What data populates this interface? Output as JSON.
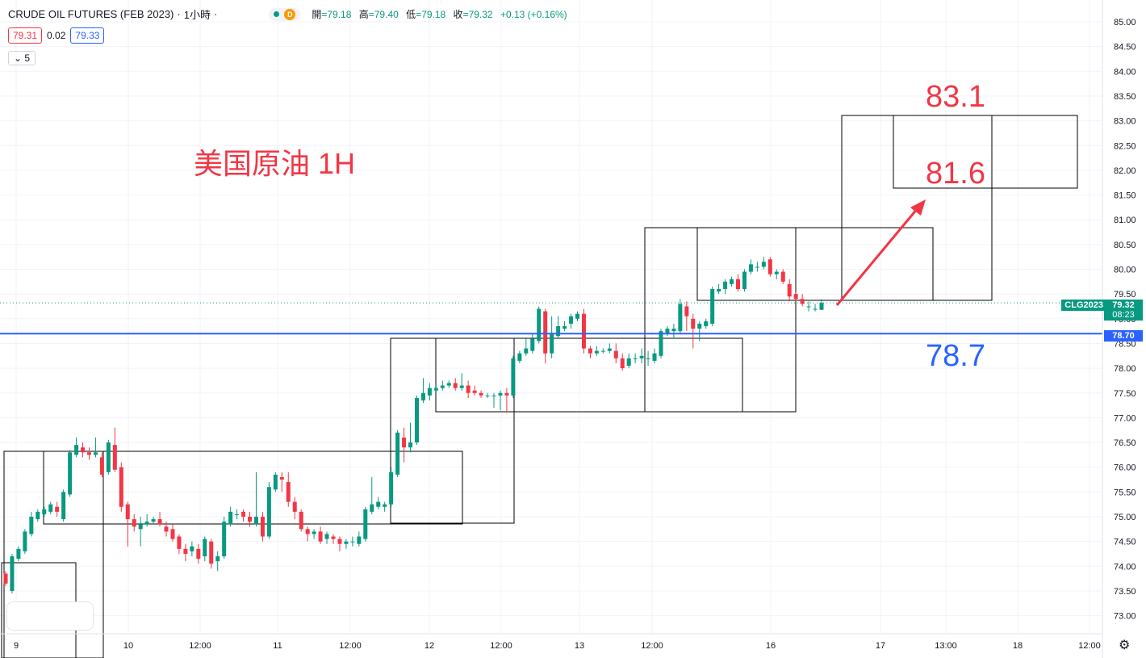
{
  "header": {
    "symbol": "CRUDE OIL FUTURES (FEB 2023)",
    "interval": "1小時",
    "status_letter": "D",
    "ohlc": [
      {
        "key": "開",
        "value": "=79.18"
      },
      {
        "key": "高",
        "value": "=79.40"
      },
      {
        "key": "低",
        "value": "=79.18"
      },
      {
        "key": "收",
        "value": "=79.32"
      },
      {
        "key": "",
        "value": "+0.13 (+0.16%)"
      }
    ]
  },
  "quote": {
    "bid": "79.31",
    "spread": "0.02",
    "ask": "79.33"
  },
  "indicators_toggle": {
    "count": "5"
  },
  "annotations": {
    "title": "美国原油 1H",
    "target_high": "83.1",
    "target_mid": "81.6",
    "support": "78.7"
  },
  "price_tags": {
    "current_symbol": "CLG2023",
    "current_price": "79.32",
    "countdown": "08:23",
    "line_price": "78.70"
  },
  "colors": {
    "up": "#089981",
    "down": "#f23645",
    "line": "#2962ff",
    "annotation_red": "#f23645",
    "annotation_blue": "#2962ff"
  },
  "chart_data": {
    "type": "candlestick",
    "title": "",
    "ylim": [
      72.75,
      85.2
    ],
    "yticks": [
      "73.00",
      "73.50",
      "74.00",
      "74.50",
      "75.00",
      "75.50",
      "76.00",
      "76.50",
      "77.00",
      "77.50",
      "78.00",
      "78.50",
      "79.00",
      "79.50",
      "80.00",
      "80.50",
      "81.00",
      "81.50",
      "82.00",
      "82.50",
      "83.00",
      "83.50",
      "84.00",
      "84.50",
      "85.00"
    ],
    "xticks": [
      "9",
      "10",
      "12:00",
      "11",
      "12:00",
      "12",
      "12:00",
      "13",
      "12:00",
      "16",
      "17",
      "13:00",
      "18",
      "12:00"
    ],
    "horizontal_line": 78.7,
    "candles": [
      [
        73.85,
        73.65,
        73.9,
        73.6
      ],
      [
        73.5,
        74.2,
        74.25,
        73.45
      ],
      [
        74.15,
        74.35,
        74.4,
        74.1
      ],
      [
        74.3,
        74.7,
        74.75,
        74.25
      ],
      [
        74.65,
        75.0,
        75.1,
        74.6
      ],
      [
        74.95,
        75.1,
        75.15,
        74.9
      ],
      [
        75.05,
        75.15,
        75.2,
        75.0
      ],
      [
        75.1,
        75.25,
        75.3,
        75.05
      ],
      [
        75.2,
        75.1,
        75.3,
        75.0
      ],
      [
        74.95,
        75.5,
        75.55,
        74.9
      ],
      [
        75.45,
        76.3,
        76.35,
        75.4
      ],
      [
        76.25,
        76.45,
        76.6,
        76.2
      ],
      [
        76.4,
        76.3,
        76.5,
        76.2
      ],
      [
        76.3,
        76.25,
        76.4,
        76.15
      ],
      [
        76.25,
        76.3,
        76.6,
        76.2
      ],
      [
        76.2,
        75.85,
        76.3,
        75.8
      ],
      [
        75.9,
        76.5,
        76.55,
        75.85
      ],
      [
        76.45,
        75.95,
        76.8,
        75.9
      ],
      [
        76.0,
        75.2,
        76.1,
        75.1
      ],
      [
        75.25,
        74.95,
        75.3,
        74.4
      ],
      [
        74.95,
        74.8,
        75.05,
        74.7
      ],
      [
        74.75,
        74.85,
        75.0,
        74.4
      ],
      [
        74.85,
        74.9,
        75.05,
        74.8
      ],
      [
        74.9,
        74.95,
        75.0,
        74.85
      ],
      [
        74.95,
        74.85,
        75.1,
        74.8
      ],
      [
        74.8,
        74.7,
        74.9,
        74.6
      ],
      [
        74.75,
        74.55,
        74.85,
        74.5
      ],
      [
        74.6,
        74.35,
        74.65,
        74.25
      ],
      [
        74.35,
        74.25,
        74.45,
        74.1
      ],
      [
        74.3,
        74.4,
        74.5,
        74.2
      ],
      [
        74.35,
        74.15,
        74.45,
        74.05
      ],
      [
        74.2,
        74.55,
        74.6,
        74.1
      ],
      [
        74.5,
        74.05,
        74.55,
        73.95
      ],
      [
        74.1,
        74.2,
        74.3,
        73.9
      ],
      [
        74.2,
        74.9,
        75.0,
        74.15
      ],
      [
        74.85,
        75.1,
        75.2,
        74.8
      ],
      [
        75.05,
        75.05,
        75.15,
        74.95
      ],
      [
        75.1,
        75.0,
        75.15,
        74.9
      ],
      [
        75.0,
        74.9,
        75.1,
        74.8
      ],
      [
        74.85,
        75.0,
        75.9,
        74.8
      ],
      [
        75.0,
        74.6,
        75.1,
        74.5
      ],
      [
        74.6,
        75.6,
        75.7,
        74.55
      ],
      [
        75.55,
        75.85,
        75.9,
        75.5
      ],
      [
        75.8,
        75.75,
        75.9,
        75.5
      ],
      [
        75.7,
        75.3,
        75.9,
        75.2
      ],
      [
        75.3,
        75.1,
        75.4,
        74.95
      ],
      [
        75.1,
        74.75,
        75.15,
        74.7
      ],
      [
        74.75,
        74.65,
        74.8,
        74.5
      ],
      [
        74.65,
        74.7,
        74.75,
        74.55
      ],
      [
        74.7,
        74.5,
        74.8,
        74.45
      ],
      [
        74.55,
        74.65,
        74.7,
        74.45
      ],
      [
        74.6,
        74.55,
        74.65,
        74.45
      ],
      [
        74.55,
        74.45,
        74.6,
        74.3
      ],
      [
        74.45,
        74.5,
        74.55,
        74.35
      ],
      [
        74.5,
        74.5,
        74.6,
        74.4
      ],
      [
        74.45,
        74.6,
        74.7,
        74.4
      ],
      [
        74.55,
        75.15,
        75.2,
        74.5
      ],
      [
        75.1,
        75.25,
        75.8,
        75.05
      ],
      [
        75.2,
        75.3,
        75.4,
        75.15
      ],
      [
        75.2,
        75.25,
        75.3,
        75.1
      ],
      [
        75.25,
        75.9,
        76.0,
        75.2
      ],
      [
        75.85,
        76.7,
        76.75,
        75.8
      ],
      [
        76.6,
        76.4,
        76.8,
        76.1
      ],
      [
        76.4,
        76.5,
        76.9,
        76.3
      ],
      [
        76.5,
        77.4,
        77.45,
        76.45
      ],
      [
        77.35,
        77.5,
        77.8,
        77.3
      ],
      [
        77.45,
        77.6,
        77.7,
        77.35
      ],
      [
        77.55,
        77.6,
        77.7,
        77.5
      ],
      [
        77.6,
        77.65,
        77.75,
        77.55
      ],
      [
        77.65,
        77.7,
        77.75,
        77.6
      ],
      [
        77.7,
        77.6,
        77.8,
        77.55
      ],
      [
        77.6,
        77.65,
        77.9,
        77.55
      ],
      [
        77.65,
        77.5,
        77.75,
        77.4
      ],
      [
        77.55,
        77.5,
        77.65,
        77.45
      ],
      [
        77.5,
        77.45,
        77.55,
        77.4
      ],
      [
        77.45,
        77.45,
        77.5,
        77.4
      ],
      [
        77.45,
        77.45,
        77.5,
        77.2
      ],
      [
        77.45,
        77.5,
        77.55,
        77.15
      ],
      [
        77.5,
        77.45,
        77.6,
        77.1
      ],
      [
        77.45,
        78.2,
        78.25,
        77.4
      ],
      [
        78.15,
        78.3,
        78.35,
        78.1
      ],
      [
        78.3,
        78.4,
        78.6,
        78.25
      ],
      [
        78.35,
        78.6,
        78.7,
        78.3
      ],
      [
        78.55,
        79.2,
        79.25,
        78.5
      ],
      [
        79.15,
        78.3,
        79.2,
        78.1
      ],
      [
        78.3,
        78.7,
        79.05,
        78.2
      ],
      [
        78.65,
        78.85,
        79.05,
        78.6
      ],
      [
        78.8,
        78.85,
        78.95,
        78.75
      ],
      [
        78.9,
        79.05,
        79.1,
        78.8
      ],
      [
        79.0,
        79.1,
        79.15,
        78.95
      ],
      [
        79.1,
        78.4,
        79.2,
        78.3
      ],
      [
        78.4,
        78.3,
        78.45,
        78.2
      ],
      [
        78.3,
        78.35,
        78.45,
        78.25
      ],
      [
        78.35,
        78.35,
        78.4,
        78.3
      ],
      [
        78.35,
        78.4,
        78.5,
        78.3
      ],
      [
        78.35,
        78.2,
        78.5,
        78.1
      ],
      [
        78.2,
        78.0,
        78.3,
        77.95
      ],
      [
        78.05,
        78.2,
        78.3,
        78.0
      ],
      [
        78.2,
        78.2,
        78.3,
        78.1
      ],
      [
        78.2,
        78.25,
        78.4,
        78.1
      ],
      [
        78.2,
        78.2,
        78.35,
        78.05
      ],
      [
        78.15,
        78.3,
        78.4,
        78.1
      ],
      [
        78.25,
        78.75,
        78.8,
        78.2
      ],
      [
        78.7,
        78.8,
        78.85,
        78.65
      ],
      [
        78.75,
        78.8,
        78.9,
        78.6
      ],
      [
        78.75,
        79.3,
        79.4,
        78.7
      ],
      [
        79.25,
        79.05,
        79.35,
        78.75
      ],
      [
        79.0,
        78.8,
        79.1,
        78.4
      ],
      [
        78.8,
        78.9,
        78.95,
        78.55
      ],
      [
        78.85,
        78.95,
        79.0,
        78.8
      ],
      [
        78.9,
        79.6,
        79.65,
        78.85
      ],
      [
        79.55,
        79.6,
        79.7,
        79.5
      ],
      [
        79.6,
        79.75,
        79.8,
        79.5
      ],
      [
        79.7,
        79.8,
        79.85,
        79.65
      ],
      [
        79.8,
        79.6,
        79.9,
        79.55
      ],
      [
        79.6,
        79.95,
        80.0,
        79.55
      ],
      [
        79.95,
        80.1,
        80.2,
        79.9
      ],
      [
        80.05,
        80.05,
        80.15,
        79.95
      ],
      [
        80.05,
        80.15,
        80.25,
        80.0
      ],
      [
        80.2,
        79.9,
        80.25,
        79.85
      ],
      [
        79.9,
        79.95,
        80.0,
        79.8
      ],
      [
        79.95,
        79.75,
        80.0,
        79.7
      ],
      [
        79.7,
        79.45,
        79.8,
        79.35
      ],
      [
        79.5,
        79.4,
        79.55,
        79.35
      ],
      [
        79.4,
        79.3,
        79.5,
        79.25
      ],
      [
        79.25,
        79.25,
        79.35,
        79.15
      ],
      [
        79.2,
        79.2,
        79.3,
        79.15
      ],
      [
        79.18,
        79.32,
        79.4,
        79.18
      ]
    ]
  }
}
